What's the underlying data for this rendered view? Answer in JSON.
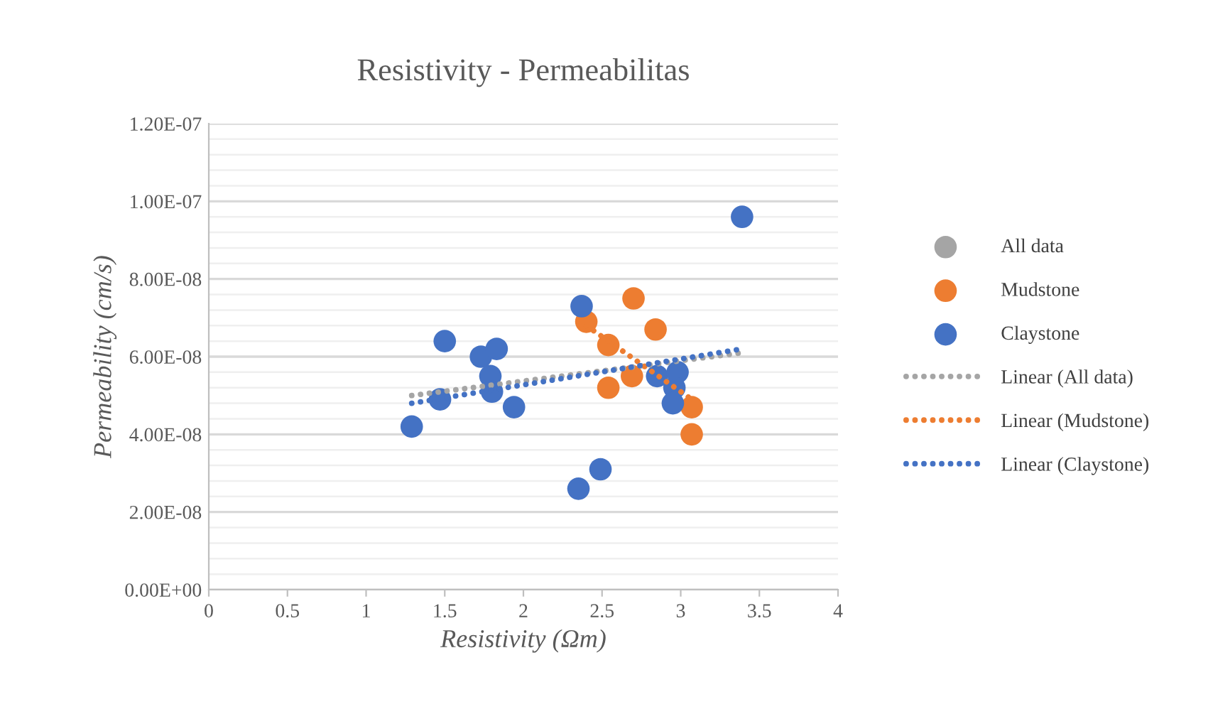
{
  "chart_data": {
    "type": "scatter",
    "title": "Resistivity - Permeabilitas",
    "xlabel": "Resistivity (Ωm)",
    "ylabel": "Permeability (cm/s)",
    "xlim": [
      0,
      4
    ],
    "xticks": [
      0,
      0.5,
      1,
      1.5,
      2,
      2.5,
      3,
      3.5,
      4
    ],
    "ylim": [
      0,
      1.2e-07
    ],
    "yticks": [
      {
        "value": 0,
        "label": "0.00E+00"
      },
      {
        "value": 2e-08,
        "label": "2.00E-08"
      },
      {
        "value": 4e-08,
        "label": "4.00E-08"
      },
      {
        "value": 6e-08,
        "label": "6.00E-08"
      },
      {
        "value": 8e-08,
        "label": "8.00E-08"
      },
      {
        "value": 1e-07,
        "label": "1.00E-07"
      },
      {
        "value": 1.2e-07,
        "label": "1.20E-07"
      }
    ],
    "grid": "y",
    "legend": "right",
    "marker": "circle",
    "series": [
      {
        "name": "All data",
        "color": "#a5a5a5"
      },
      {
        "name": "Mudstone",
        "color": "#ed7d31",
        "x": [
          2.7,
          2.4,
          2.84,
          2.54,
          2.69,
          2.54,
          3.07,
          3.07
        ],
        "values": [
          7.5e-08,
          6.9e-08,
          6.7e-08,
          6.3e-08,
          5.5e-08,
          5.2e-08,
          4.7e-08,
          4e-08
        ]
      },
      {
        "name": "Claystone",
        "color": "#4472c4",
        "x": [
          3.39,
          2.37,
          1.5,
          1.73,
          1.83,
          1.79,
          1.8,
          1.47,
          1.94,
          1.29,
          2.49,
          2.35,
          2.85,
          2.98,
          2.96,
          2.95
        ],
        "values": [
          9.6e-08,
          7.3e-08,
          6.4e-08,
          6e-08,
          6.2e-08,
          5.5e-08,
          5.1e-08,
          4.9e-08,
          4.7e-08,
          4.2e-08,
          3.1e-08,
          2.6e-08,
          5.5e-08,
          5.6e-08,
          5.2e-08,
          4.8e-08
        ]
      },
      {
        "name": "Linear (All data)",
        "type": "line",
        "line_style": "dotted",
        "marker": "none",
        "color": "#a5a5a5",
        "x": [
          1.29,
          3.39
        ],
        "values": [
          5e-08,
          6.1e-08
        ]
      },
      {
        "name": "Linear (Mudstone)",
        "type": "line",
        "line_style": "dotted",
        "marker": "none",
        "color": "#ed7d31",
        "x": [
          2.4,
          3.07
        ],
        "values": [
          6.8e-08,
          4.9e-08
        ]
      },
      {
        "name": "Linear (Claystone)",
        "type": "line",
        "line_style": "dotted",
        "marker": "none",
        "color": "#4472c4",
        "x": [
          1.29,
          3.39
        ],
        "values": [
          4.8e-08,
          6.2e-08
        ]
      }
    ]
  }
}
